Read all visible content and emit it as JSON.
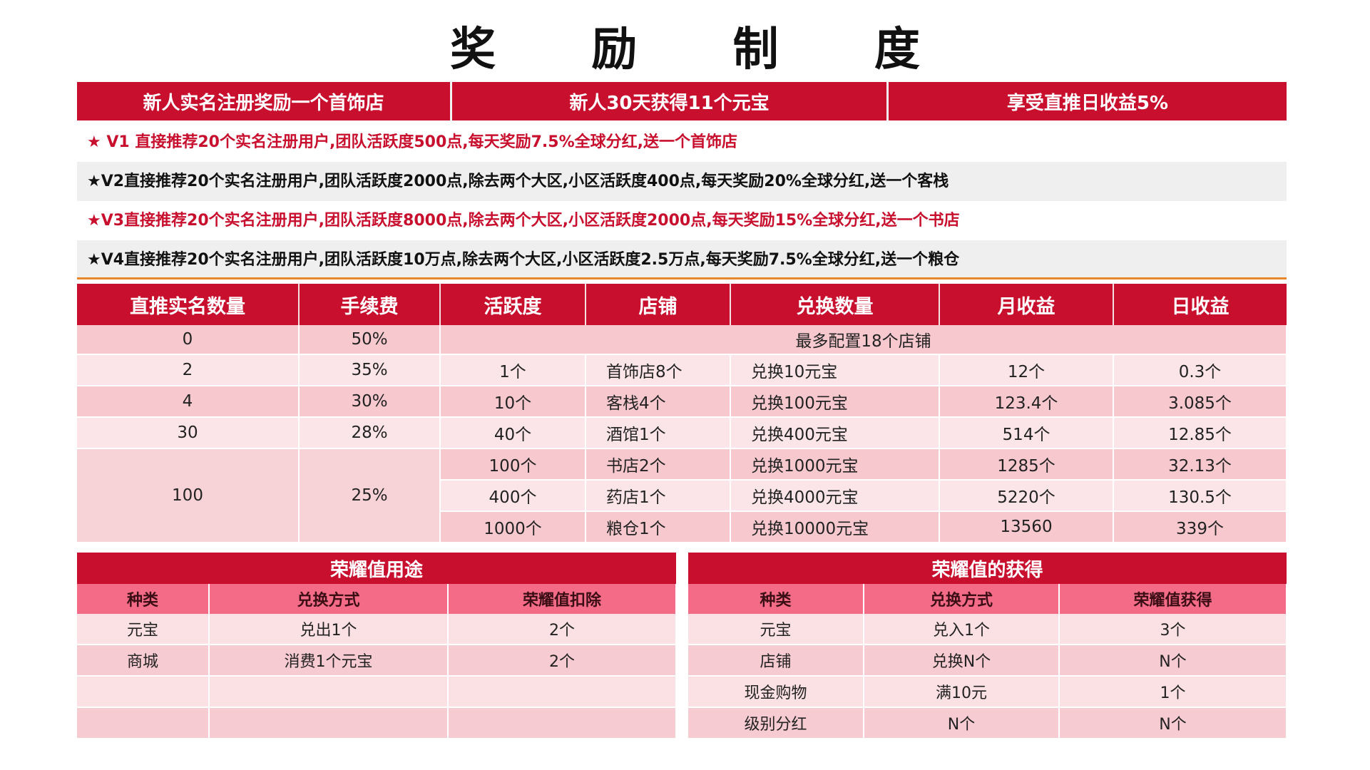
{
  "title": "奖 励 制 度",
  "top_banner": [
    "新人实名注册奖励一个首饰店",
    "新人30天获得11个元宝",
    "享受直推日收益5%"
  ],
  "levels": [
    "★ V1 直接推荐20个实名注册用户,团队活跃度500点,每天奖励7.5%全球分红,送一个首饰店",
    "★V2直接推荐20个实名注册用户,团队活跃度2000点,除去两个大区,小区活跃度400点,每天奖励20%全球分红,送一个客栈",
    "★V3直接推荐20个实名注册用户,团队活跃度8000点,除去两个大区,小区活跃度2000点,每天奖励15%全球分红,送一个书店",
    "★V4直接推荐20个实名注册用户,团队活跃度10万点,除去两个大区,小区活跃度2.5万点,每天奖励7.5%全球分红,送一个粮仓"
  ],
  "main_table": {
    "headers": [
      "直推实名数量",
      "手续费",
      "活跃度",
      "店铺",
      "兑换数量",
      "月收益",
      "日收益"
    ],
    "row0": {
      "count": "0",
      "fee": "50%",
      "note": "最多配置18个店铺"
    },
    "rows": [
      {
        "count": "2",
        "fee": "35%",
        "activity": "1个",
        "shop": "首饰店8个",
        "exchange": "兑换10元宝",
        "monthly": "12个",
        "daily": "0.3个"
      },
      {
        "count": "4",
        "fee": "30%",
        "activity": "10个",
        "shop": "客栈4个",
        "exchange": "兑换100元宝",
        "monthly": "123.4个",
        "daily": "3.085个"
      },
      {
        "count": "30",
        "fee": "28%",
        "activity": "40个",
        "shop": "酒馆1个",
        "exchange": "兑换400元宝",
        "monthly": "514个",
        "daily": "12.85个"
      }
    ],
    "group100": {
      "count": "100",
      "fee": "25%",
      "rows": [
        {
          "activity": "100个",
          "shop": "书店2个",
          "exchange": "兑换1000元宝",
          "monthly": "1285个",
          "daily": "32.13个"
        },
        {
          "activity": "400个",
          "shop": "药店1个",
          "exchange": "兑换4000元宝",
          "monthly": "5220个",
          "daily": "130.5个"
        },
        {
          "activity": "1000个",
          "shop": "粮仓1个",
          "exchange": "兑换10000元宝",
          "monthly": "13560",
          "daily": "339个"
        }
      ]
    }
  },
  "honor_use": {
    "title": "荣耀值用途",
    "headers": [
      "种类",
      "兑换方式",
      "荣耀值扣除"
    ],
    "rows": [
      [
        "元宝",
        "兑出1个",
        "2个"
      ],
      [
        "商城",
        "消费1个元宝",
        "2个"
      ],
      [
        "",
        "",
        ""
      ],
      [
        "",
        "",
        ""
      ]
    ]
  },
  "honor_gain": {
    "title": "荣耀值的获得",
    "headers": [
      "种类",
      "兑换方式",
      "荣耀值获得"
    ],
    "rows": [
      [
        "元宝",
        "兑入1个",
        "3个"
      ],
      [
        "店铺",
        "兑换N个",
        "N个"
      ],
      [
        "现金购物",
        "满10元",
        "1个"
      ],
      [
        "级别分红",
        "N个",
        "N个"
      ]
    ]
  }
}
